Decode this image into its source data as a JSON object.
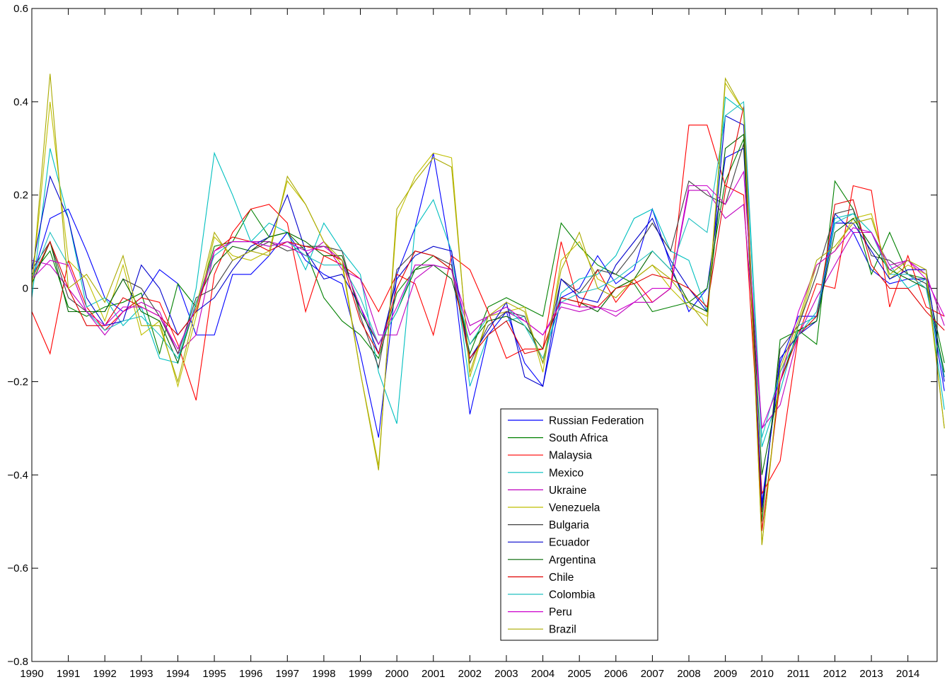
{
  "chart_data": {
    "type": "line",
    "title": "",
    "xlabel": "",
    "ylabel": "",
    "xlim": [
      1990,
      2014.8
    ],
    "ylim": [
      -0.8,
      0.6
    ],
    "grid": false,
    "legend_position": "lower-center",
    "x_ticks": [
      "1990",
      "1991",
      "1992",
      "1993",
      "1994",
      "1995",
      "1996",
      "1997",
      "1998",
      "1999",
      "2000",
      "2001",
      "2002",
      "2003",
      "2004",
      "2005",
      "2006",
      "2007",
      "2008",
      "2009",
      "2010",
      "2011",
      "2012",
      "2013",
      "2014"
    ],
    "y_ticks": [
      "0.6",
      "0.4",
      "0.2",
      "0",
      "−0.2",
      "−0.4",
      "−0.6",
      "−0.8"
    ],
    "x_start": 1990,
    "x_step": 0.5,
    "series": [
      {
        "name": "Russian Federation",
        "color": "#0000ff",
        "values": [
          0.02,
          0.15,
          0.17,
          0.08,
          -0.02,
          -0.05,
          -0.02,
          0.04,
          0.01,
          -0.1,
          -0.1,
          0.03,
          0.03,
          0.07,
          0.12,
          0.06,
          0.03,
          0.01,
          -0.14,
          -0.32,
          0.03,
          0.13,
          0.29,
          0.06,
          -0.27,
          -0.1,
          -0.05,
          -0.16,
          -0.21,
          -0.02,
          0.0,
          0.07,
          0.01,
          0.04,
          0.17,
          0.05,
          -0.05,
          0.0,
          0.28,
          0.3,
          -0.46,
          -0.16,
          -0.06,
          -0.06,
          0.16,
          0.12,
          0.04,
          0.01,
          0.02,
          0.02,
          -0.22
        ]
      },
      {
        "name": "South Africa",
        "color": "#008000",
        "values": [
          0.03,
          0.08,
          -0.04,
          -0.06,
          -0.04,
          -0.03,
          -0.01,
          -0.14,
          0.01,
          -0.04,
          0.09,
          0.1,
          0.17,
          0.11,
          0.12,
          0.08,
          -0.02,
          -0.07,
          -0.1,
          -0.15,
          -0.01,
          0.04,
          0.07,
          0.04,
          -0.14,
          -0.04,
          -0.02,
          -0.04,
          -0.06,
          0.14,
          0.09,
          0.05,
          0.03,
          0.01,
          -0.05,
          -0.04,
          -0.03,
          0.0,
          0.23,
          0.32,
          -0.5,
          -0.11,
          -0.09,
          -0.12,
          0.23,
          0.17,
          0.03,
          0.12,
          0.03,
          0.02,
          -0.16
        ]
      },
      {
        "name": "Malaysia",
        "color": "#ff0000",
        "values": [
          -0.05,
          -0.14,
          0.06,
          -0.04,
          -0.09,
          -0.05,
          -0.02,
          -0.03,
          -0.12,
          -0.24,
          0.03,
          0.12,
          0.17,
          0.18,
          0.14,
          -0.05,
          0.07,
          0.05,
          0.02,
          -0.05,
          0.03,
          0.01,
          -0.1,
          0.07,
          0.04,
          -0.05,
          -0.15,
          -0.13,
          -0.13,
          0.1,
          -0.04,
          0.04,
          -0.03,
          0.02,
          -0.03,
          0.0,
          0.35,
          0.35,
          0.22,
          0.2,
          -0.44,
          -0.37,
          -0.1,
          0.01,
          0.0,
          0.22,
          0.21,
          -0.04,
          0.07,
          -0.04,
          -0.06
        ]
      },
      {
        "name": "Mexico",
        "color": "#00bfbf",
        "values": [
          -0.02,
          0.3,
          0.15,
          -0.04,
          -0.02,
          -0.08,
          -0.04,
          -0.15,
          -0.16,
          0.0,
          0.29,
          0.2,
          0.1,
          0.14,
          0.12,
          0.04,
          0.14,
          0.08,
          0.03,
          -0.18,
          -0.29,
          0.13,
          0.19,
          0.08,
          -0.21,
          -0.1,
          -0.07,
          -0.06,
          -0.16,
          -0.01,
          0.02,
          0.03,
          0.07,
          0.15,
          0.17,
          0.08,
          0.06,
          -0.05,
          0.41,
          0.38,
          -0.34,
          -0.22,
          -0.08,
          -0.06,
          0.15,
          0.16,
          0.12,
          0.05,
          0.0,
          0.02,
          -0.26
        ]
      },
      {
        "name": "Ukraine",
        "color": "#bf00bf",
        "values": [
          0.06,
          0.05,
          0.0,
          -0.05,
          -0.1,
          -0.05,
          -0.03,
          -0.05,
          -0.14,
          -0.1,
          0.08,
          0.1,
          0.1,
          0.1,
          0.09,
          0.07,
          0.1,
          0.04,
          0.02,
          -0.1,
          -0.1,
          0.02,
          0.05,
          0.04,
          -0.08,
          -0.06,
          -0.05,
          -0.07,
          -0.1,
          -0.04,
          -0.05,
          -0.04,
          -0.06,
          -0.03,
          -0.03,
          0.0,
          0.21,
          0.21,
          0.15,
          0.18,
          -0.3,
          -0.25,
          -0.1,
          -0.02,
          0.05,
          0.12,
          0.12,
          0.05,
          0.06,
          0.03,
          -0.08
        ]
      },
      {
        "name": "Venezuela",
        "color": "#bfbf00",
        "values": [
          0.0,
          0.4,
          0.06,
          0.02,
          -0.07,
          0.05,
          -0.1,
          -0.07,
          -0.21,
          -0.06,
          0.11,
          0.07,
          0.06,
          0.08,
          0.23,
          0.18,
          0.1,
          0.05,
          -0.18,
          -0.38,
          0.15,
          0.24,
          0.29,
          0.28,
          -0.19,
          -0.06,
          -0.05,
          -0.04,
          -0.18,
          0.06,
          0.1,
          0.02,
          0.0,
          0.02,
          0.05,
          0.0,
          -0.04,
          -0.06,
          0.44,
          0.38,
          -0.55,
          -0.18,
          -0.08,
          0.05,
          0.08,
          0.15,
          0.16,
          0.02,
          0.05,
          0.03,
          -0.3
        ]
      },
      {
        "name": "Bulgaria",
        "color": "#404040",
        "values": [
          0.04,
          0.1,
          -0.02,
          -0.05,
          -0.05,
          0.02,
          0.0,
          -0.06,
          -0.14,
          -0.02,
          0.0,
          0.06,
          0.08,
          0.1,
          0.08,
          0.09,
          0.09,
          0.08,
          -0.06,
          -0.17,
          0.04,
          0.08,
          0.07,
          0.05,
          -0.16,
          -0.08,
          -0.05,
          -0.06,
          -0.16,
          0.02,
          -0.01,
          0.04,
          0.03,
          0.08,
          0.14,
          0.08,
          0.23,
          0.2,
          0.18,
          0.31,
          -0.48,
          -0.13,
          -0.08,
          0.03,
          0.16,
          0.17,
          0.07,
          0.06,
          0.03,
          0.01,
          -0.19
        ]
      },
      {
        "name": "Ecuador",
        "color": "#0000cc",
        "values": [
          0.04,
          0.24,
          0.15,
          -0.02,
          -0.08,
          -0.07,
          0.05,
          0.0,
          -0.1,
          -0.05,
          -0.02,
          0.04,
          0.09,
          0.11,
          0.2,
          0.08,
          0.02,
          0.03,
          -0.04,
          -0.14,
          0.02,
          0.07,
          0.09,
          0.08,
          -0.15,
          -0.09,
          -0.03,
          -0.19,
          -0.21,
          0.02,
          -0.02,
          -0.03,
          0.05,
          0.1,
          0.15,
          0.06,
          0.0,
          -0.05,
          0.37,
          0.35,
          -0.47,
          -0.15,
          -0.1,
          -0.07,
          0.14,
          0.14,
          0.08,
          0.02,
          0.04,
          0.04,
          -0.2
        ]
      },
      {
        "name": "Argentina",
        "color": "#006600",
        "values": [
          0.01,
          0.1,
          -0.05,
          -0.05,
          -0.05,
          0.02,
          -0.05,
          -0.07,
          -0.16,
          -0.03,
          0.05,
          0.09,
          0.08,
          0.11,
          0.12,
          0.1,
          0.07,
          0.07,
          -0.05,
          -0.12,
          -0.05,
          0.04,
          0.05,
          0.02,
          -0.12,
          -0.07,
          -0.06,
          -0.08,
          -0.13,
          -0.02,
          -0.03,
          -0.05,
          0.0,
          0.02,
          0.08,
          0.04,
          -0.03,
          -0.05,
          0.3,
          0.33,
          -0.4,
          -0.2,
          -0.09,
          -0.07,
          0.12,
          0.15,
          0.09,
          0.04,
          0.02,
          0.0,
          -0.18
        ]
      },
      {
        "name": "Chile",
        "color": "#e00000",
        "values": [
          0.02,
          0.1,
          0.0,
          -0.08,
          -0.08,
          -0.02,
          -0.04,
          -0.06,
          -0.1,
          -0.05,
          0.08,
          0.11,
          0.1,
          0.08,
          0.1,
          0.09,
          0.08,
          0.06,
          -0.07,
          -0.14,
          0.0,
          0.08,
          0.07,
          0.04,
          -0.15,
          -0.1,
          -0.07,
          -0.14,
          -0.13,
          -0.02,
          -0.03,
          -0.04,
          0.0,
          0.01,
          0.03,
          0.02,
          0.0,
          -0.04,
          0.21,
          0.39,
          -0.52,
          -0.2,
          -0.1,
          -0.06,
          0.18,
          0.19,
          0.05,
          0.0,
          0.0,
          -0.05,
          -0.09
        ]
      },
      {
        "name": "Colombia",
        "color": "#20c0c0",
        "values": [
          0.02,
          0.12,
          0.05,
          -0.05,
          -0.09,
          -0.07,
          -0.06,
          -0.1,
          -0.15,
          -0.03,
          0.07,
          0.1,
          0.1,
          0.09,
          0.1,
          0.07,
          0.05,
          0.05,
          -0.02,
          -0.12,
          -0.05,
          0.05,
          0.05,
          0.04,
          -0.12,
          -0.06,
          -0.04,
          -0.08,
          -0.15,
          -0.03,
          -0.01,
          0.0,
          0.02,
          0.05,
          0.08,
          0.04,
          0.15,
          0.12,
          0.37,
          0.4,
          -0.32,
          -0.18,
          -0.1,
          -0.05,
          0.14,
          0.16,
          0.12,
          0.03,
          0.03,
          0.0,
          -0.19
        ]
      },
      {
        "name": "Peru",
        "color": "#cc00cc",
        "values": [
          0.02,
          0.06,
          0.05,
          -0.05,
          -0.08,
          -0.04,
          -0.04,
          -0.06,
          -0.13,
          -0.04,
          0.08,
          0.1,
          0.1,
          0.09,
          0.1,
          0.08,
          0.09,
          0.06,
          -0.04,
          -0.12,
          -0.04,
          0.05,
          0.05,
          0.04,
          -0.1,
          -0.06,
          -0.04,
          -0.07,
          -0.1,
          -0.03,
          -0.04,
          -0.04,
          -0.05,
          -0.03,
          0.0,
          0.0,
          0.22,
          0.22,
          0.18,
          0.25,
          -0.3,
          -0.2,
          -0.05,
          0.05,
          0.08,
          0.13,
          0.12,
          0.04,
          0.06,
          0.02,
          -0.06
        ]
      },
      {
        "name": "Brazil",
        "color": "#aaaa00",
        "values": [
          0.0,
          0.46,
          0.0,
          0.03,
          -0.03,
          0.07,
          -0.08,
          -0.08,
          -0.2,
          -0.04,
          0.12,
          0.06,
          0.08,
          0.07,
          0.24,
          0.18,
          0.1,
          0.06,
          -0.18,
          -0.39,
          0.17,
          0.23,
          0.28,
          0.26,
          -0.18,
          -0.06,
          -0.03,
          -0.05,
          -0.16,
          0.04,
          0.12,
          0.0,
          -0.02,
          0.02,
          0.05,
          0.02,
          -0.03,
          -0.08,
          0.45,
          0.38,
          -0.55,
          -0.17,
          -0.07,
          0.06,
          0.09,
          0.14,
          0.15,
          0.03,
          0.06,
          0.04,
          -0.3
        ]
      }
    ]
  }
}
